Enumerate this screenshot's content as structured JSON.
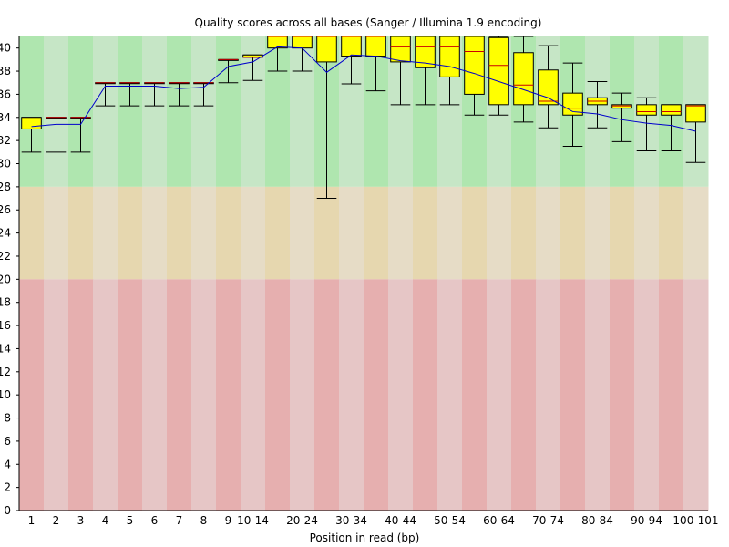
{
  "chart_data": {
    "type": "boxplot",
    "title": "Quality scores across all bases (Sanger / Illumina 1.9 encoding)",
    "xlabel": "Position in read (bp)",
    "ylabel": "",
    "ylim": [
      0,
      41
    ],
    "yticks": [
      0,
      2,
      4,
      6,
      8,
      10,
      12,
      14,
      16,
      18,
      20,
      22,
      24,
      26,
      28,
      30,
      32,
      34,
      36,
      38,
      40
    ],
    "bands": [
      {
        "from": 28,
        "to": 41,
        "colors": [
          "#afe6af",
          "#c6e6c6"
        ]
      },
      {
        "from": 20,
        "to": 28,
        "colors": [
          "#e6d7af",
          "#e6dcc6"
        ]
      },
      {
        "from": 0,
        "to": 20,
        "colors": [
          "#e6afaf",
          "#e6c6c6"
        ]
      }
    ],
    "box_color": "#ffff00",
    "median_color": "#cc0000",
    "mean_color": "#0000cc",
    "categories": [
      "1",
      "2",
      "3",
      "4",
      "5",
      "6",
      "7",
      "8",
      "9",
      "10-14",
      "15-19",
      "20-24",
      "25-29",
      "30-34",
      "35-39",
      "40-44",
      "45-49",
      "50-54",
      "55-59",
      "60-64",
      "65-69",
      "70-74",
      "75-79",
      "80-84",
      "85-89",
      "90-94",
      "95-99",
      "100-101"
    ],
    "xtick_labels": [
      "1",
      "2",
      "3",
      "4",
      "5",
      "6",
      "7",
      "8",
      "9",
      "10-14",
      "",
      "20-24",
      "",
      "30-34",
      "",
      "40-44",
      "",
      "50-54",
      "",
      "60-64",
      "",
      "70-74",
      "",
      "80-84",
      "",
      "90-94",
      "",
      "100-101"
    ],
    "boxes": [
      {
        "lw": 31,
        "q1": 33,
        "med": 33,
        "q3": 34,
        "uw": 34,
        "mean": 33.2
      },
      {
        "lw": 31,
        "q1": 34,
        "med": 34,
        "q3": 34,
        "uw": 34,
        "mean": 33.4
      },
      {
        "lw": 31,
        "q1": 34,
        "med": 34,
        "q3": 34,
        "uw": 34,
        "mean": 33.4
      },
      {
        "lw": 35,
        "q1": 37,
        "med": 37,
        "q3": 37,
        "uw": 37,
        "mean": 36.7
      },
      {
        "lw": 35,
        "q1": 37,
        "med": 37,
        "q3": 37,
        "uw": 37,
        "mean": 36.7
      },
      {
        "lw": 35,
        "q1": 37,
        "med": 37,
        "q3": 37,
        "uw": 37,
        "mean": 36.7
      },
      {
        "lw": 35,
        "q1": 37,
        "med": 37,
        "q3": 37,
        "uw": 37,
        "mean": 36.5
      },
      {
        "lw": 35,
        "q1": 37,
        "med": 37,
        "q3": 37,
        "uw": 37,
        "mean": 36.6
      },
      {
        "lw": 37,
        "q1": 39,
        "med": 39,
        "q3": 39,
        "uw": 39,
        "mean": 38.4
      },
      {
        "lw": 37.2,
        "q1": 39.2,
        "med": 39.2,
        "q3": 39.4,
        "uw": 39.4,
        "mean": 38.8
      },
      {
        "lw": 38,
        "q1": 40,
        "med": 41,
        "q3": 41,
        "uw": 41,
        "mean": 40.1
      },
      {
        "lw": 38,
        "q1": 40,
        "med": 41,
        "q3": 41,
        "uw": 41,
        "mean": 40.0
      },
      {
        "lw": 27,
        "q1": 38.8,
        "med": 41,
        "q3": 41,
        "uw": 41,
        "mean": 37.9
      },
      {
        "lw": 36.9,
        "q1": 39.3,
        "med": 41,
        "q3": 41,
        "uw": 41,
        "mean": 39.4
      },
      {
        "lw": 36.3,
        "q1": 39.3,
        "med": 41,
        "q3": 41,
        "uw": 41,
        "mean": 39.3
      },
      {
        "lw": 35.1,
        "q1": 38.8,
        "med": 40.1,
        "q3": 41,
        "uw": 41,
        "mean": 38.9
      },
      {
        "lw": 35.1,
        "q1": 38.3,
        "med": 40.1,
        "q3": 41,
        "uw": 41,
        "mean": 38.7
      },
      {
        "lw": 35.1,
        "q1": 37.5,
        "med": 40.1,
        "q3": 41,
        "uw": 41,
        "mean": 38.4
      },
      {
        "lw": 34.2,
        "q1": 36.0,
        "med": 39.7,
        "q3": 41,
        "uw": 41,
        "mean": 37.8
      },
      {
        "lw": 34.2,
        "q1": 35.1,
        "med": 38.5,
        "q3": 40.9,
        "uw": 41,
        "mean": 37.1
      },
      {
        "lw": 33.6,
        "q1": 35.1,
        "med": 36.8,
        "q3": 39.6,
        "uw": 41,
        "mean": 36.4
      },
      {
        "lw": 33.1,
        "q1": 35.1,
        "med": 35.4,
        "q3": 38.1,
        "uw": 40.2,
        "mean": 35.7
      },
      {
        "lw": 31.5,
        "q1": 34.2,
        "med": 34.8,
        "q3": 36.1,
        "uw": 38.7,
        "mean": 34.5
      },
      {
        "lw": 33.1,
        "q1": 35.1,
        "med": 35.4,
        "q3": 35.7,
        "uw": 37.1,
        "mean": 34.3
      },
      {
        "lw": 31.9,
        "q1": 34.8,
        "med": 35.0,
        "q3": 35.1,
        "uw": 36.1,
        "mean": 33.8
      },
      {
        "lw": 31.1,
        "q1": 34.2,
        "med": 34.5,
        "q3": 35.1,
        "uw": 35.7,
        "mean": 33.5
      },
      {
        "lw": 31.1,
        "q1": 34.2,
        "med": 34.5,
        "q3": 35.1,
        "uw": 35.1,
        "mean": 33.3
      },
      {
        "lw": 30.1,
        "q1": 33.6,
        "med": 35.0,
        "q3": 35.1,
        "uw": 35.1,
        "mean": 32.8
      }
    ]
  }
}
